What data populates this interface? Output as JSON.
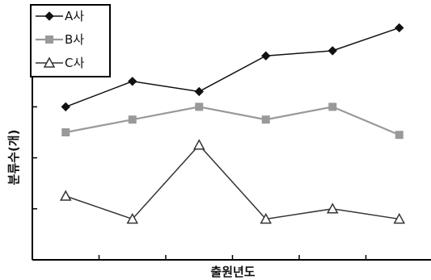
{
  "chart_data": {
    "type": "line",
    "title": "",
    "xlabel": "출원년도",
    "ylabel": "분류수(개)",
    "x": [
      1,
      2,
      3,
      4,
      5,
      6
    ],
    "xlim": [
      0.5,
      6.5
    ],
    "ylim": [
      0,
      10
    ],
    "y_ticks": [
      2,
      4,
      6
    ],
    "grid": false,
    "legend_position": "top-left",
    "series": [
      {
        "name": "A사",
        "marker": "diamond",
        "color": "#111111",
        "values": [
          6.0,
          7.0,
          6.6,
          8.0,
          8.2,
          9.1
        ]
      },
      {
        "name": "B사",
        "marker": "square",
        "color": "#999999",
        "values": [
          5.0,
          5.5,
          6.0,
          5.5,
          6.0,
          4.9
        ]
      },
      {
        "name": "C사",
        "marker": "triangle",
        "color": "#333333",
        "values": [
          2.5,
          1.6,
          4.5,
          1.6,
          2.0,
          1.6
        ]
      }
    ]
  }
}
